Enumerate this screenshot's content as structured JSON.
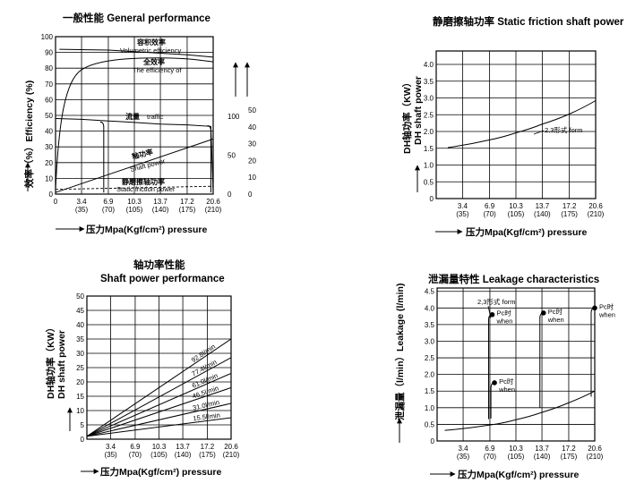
{
  "chart_data": [
    {
      "id": "gp",
      "type": "line",
      "title": "一般性能 General performance",
      "ylabel": "效率（%）Efficiency (%)",
      "xlabel": "压力Mpa(Kgf/cm²) pressure",
      "x_ticks_top": [
        "0",
        "3.4",
        "6.9",
        "10.3",
        "13.7",
        "17.2",
        "20.6"
      ],
      "x_ticks_bottom": [
        "(35)",
        "(70)",
        "(105)",
        "(140)",
        "(175)",
        "(210)"
      ],
      "y_ticks": [
        "0",
        "10",
        "20",
        "30",
        "40",
        "50",
        "60",
        "70",
        "80",
        "90",
        "100"
      ],
      "ylim": [
        0,
        100
      ],
      "xlim": [
        0,
        20.6
      ],
      "right_axis_a": {
        "label": "流量",
        "ticks": [
          "0",
          "50",
          "100"
        ]
      },
      "right_axis_b": {
        "label": "轴功率",
        "ticks": [
          "0",
          "10",
          "20",
          "30",
          "40",
          "50"
        ]
      },
      "series": [
        {
          "name": "容积效率 Volumetric efficiency",
          "x": [
            0.5,
            6.9,
            10.3,
            13.7,
            17.2,
            20.6
          ],
          "y": [
            92,
            91.5,
            90.5,
            89.5,
            88.5,
            87
          ]
        },
        {
          "name": "全效率 The efficiency of",
          "x": [
            0,
            0.5,
            1.5,
            3.4,
            6.9,
            10.3,
            13.7,
            17.2,
            20.6
          ],
          "y": [
            3,
            35,
            68,
            79,
            84.5,
            86,
            86.5,
            86,
            84
          ]
        },
        {
          "name": "流量 traffic",
          "x": [
            0,
            3.4,
            6.9,
            10.3,
            13.7,
            17.2,
            20.3,
            20.6
          ],
          "y": [
            48,
            47.5,
            46.5,
            45.5,
            44.5,
            44,
            43,
            1
          ]
        },
        {
          "name": "轴功率 Shaft power",
          "x": [
            0,
            20.6
          ],
          "y": [
            1,
            35
          ]
        },
        {
          "name": "静磨擦轴功率 Static friction power",
          "x": [
            0,
            20.6
          ],
          "y": [
            3,
            5
          ]
        }
      ]
    },
    {
      "id": "sf",
      "type": "line",
      "title": "静磨擦轴功率 Static friction shaft power",
      "ylabel": "DH轴功率 DH shaft power (KW)",
      "xlabel": "压力Mpa(Kgf/cm²) pressure",
      "x_ticks_top": [
        "3.4",
        "6.9",
        "10.3",
        "13.7",
        "17.2",
        "20.6"
      ],
      "x_ticks_bottom": [
        "(35)",
        "(70)",
        "(105)",
        "(140)",
        "(175)",
        "(210)"
      ],
      "y_ticks": [
        "0",
        "0.5",
        "1.0",
        "1.5",
        "2.0",
        "2.5",
        "3.0",
        "3.5",
        "4.0"
      ],
      "ylim": [
        0,
        4.4
      ],
      "xlim": [
        0,
        20.6
      ],
      "series": [
        {
          "name": "2,3形式 form",
          "x": [
            1.5,
            6.9,
            10.3,
            13.7,
            17.2,
            20.6
          ],
          "y": [
            1.52,
            1.75,
            1.96,
            2.22,
            2.52,
            2.92
          ]
        }
      ]
    },
    {
      "id": "sp",
      "type": "line",
      "title_cn": "轴功率性能",
      "title_en": "Shaft power performance",
      "ylabel": "DH轴功率 DH shaft power (KW)",
      "xlabel": "压力Mpa(Kgf/cm²) pressure",
      "x_ticks_top": [
        "3.4",
        "6.9",
        "10.3",
        "13.7",
        "17.2",
        "20.6"
      ],
      "x_ticks_bottom": [
        "(35)",
        "(70)",
        "(105)",
        "(140)",
        "(175)",
        "(210)"
      ],
      "y_ticks": [
        "0",
        "5",
        "10",
        "15",
        "20",
        "25",
        "30",
        "35",
        "40",
        "45",
        "50"
      ],
      "ylim": [
        0,
        50
      ],
      "xlim": [
        0,
        20.6
      ],
      "series": [
        {
          "name": "92.8l/min",
          "x": [
            0,
            20.6
          ],
          "y": [
            1,
            35
          ]
        },
        {
          "name": "77.4l/min",
          "x": [
            0,
            20.6
          ],
          "y": [
            1,
            28.5
          ]
        },
        {
          "name": "61.0l/min",
          "x": [
            0,
            20.6
          ],
          "y": [
            1,
            23
          ]
        },
        {
          "name": "46.5l/min",
          "x": [
            0,
            20.6
          ],
          "y": [
            1,
            18
          ]
        },
        {
          "name": "31.0l/min",
          "x": [
            0,
            20.6
          ],
          "y": [
            1,
            12.5
          ]
        },
        {
          "name": "15.5l/min",
          "x": [
            0,
            20.6
          ],
          "y": [
            1,
            7.5
          ]
        }
      ]
    },
    {
      "id": "lk",
      "type": "line",
      "title": "泄漏量特性 Leakage characteristics",
      "ylabel": "泄漏量（l/min）Leakage (l/min)",
      "xlabel": "压力Mpa(Kgf/cm²) pressure",
      "x_ticks_top": [
        "3.4",
        "6.9",
        "10.3",
        "13.7",
        "17.2",
        "20.6"
      ],
      "x_ticks_bottom": [
        "(35)",
        "(70)",
        "(105)",
        "(140)",
        "(175)",
        "(210)"
      ],
      "y_ticks": [
        "0",
        "0.5",
        "1.0",
        "1.5",
        "2.0",
        "2.5",
        "3.0",
        "3.5",
        "4.0",
        "4.5"
      ],
      "ylim": [
        0,
        4.6
      ],
      "xlim": [
        0,
        20.6
      ],
      "series": [
        {
          "name": "2,3形式 form",
          "x": [
            1.0,
            6.9,
            10.3,
            13.7,
            17.2,
            20.6
          ],
          "y": [
            0.32,
            0.48,
            0.64,
            0.86,
            1.15,
            1.5
          ]
        }
      ],
      "pc_points": [
        {
          "x": 7.2,
          "y": 3.8,
          "label1": "Pc时",
          "label2": "when"
        },
        {
          "x": 7.5,
          "y": 1.75,
          "label1": "Pc时",
          "label2": "when"
        },
        {
          "x": 13.9,
          "y": 3.85,
          "label1": "Pc时",
          "label2": "when"
        },
        {
          "x": 20.6,
          "y": 4.0,
          "label1": "Pc时",
          "label2": "when"
        }
      ]
    }
  ]
}
